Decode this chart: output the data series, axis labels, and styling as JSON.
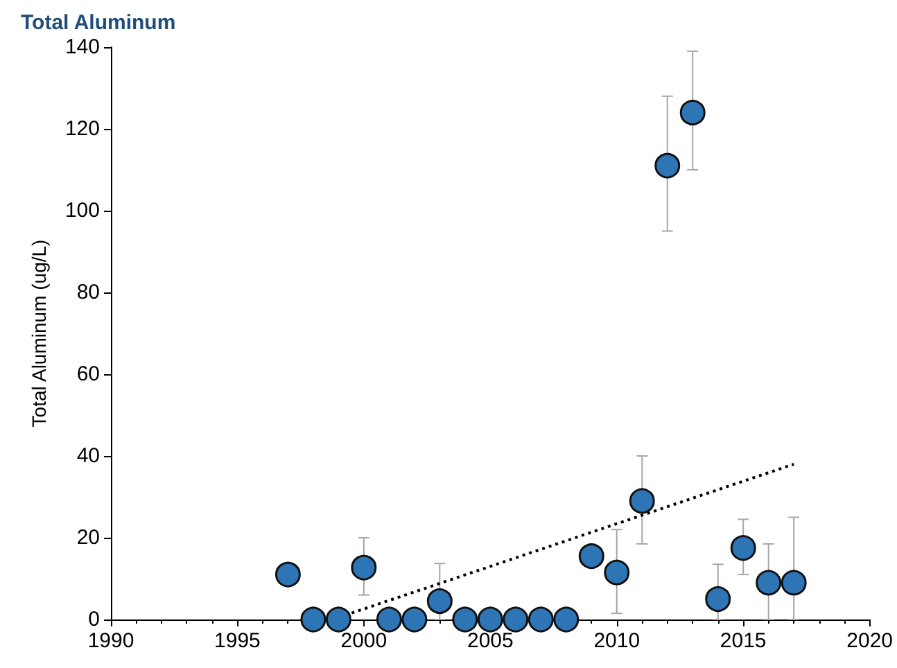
{
  "chart_data": {
    "type": "scatter",
    "title": "Total Aluminum",
    "ylabel": "Total Aluminum (ug/L)",
    "x": [
      1997,
      1998,
      1999,
      2000,
      2001,
      2002,
      2003,
      2004,
      2005,
      2006,
      2007,
      2008,
      2009,
      2010,
      2011,
      2012,
      2013,
      2014,
      2015,
      2016,
      2017
    ],
    "series": [
      {
        "color": "#2e75b6",
        "values": [
          11,
          0,
          0,
          12.7,
          0,
          0,
          4.5,
          0,
          0,
          0,
          0,
          0,
          15.5,
          11.5,
          29,
          111,
          124,
          5,
          17.5,
          9,
          9
        ],
        "errors": [
          null,
          null,
          null,
          [
            6,
            20
          ],
          null,
          null,
          [
            0,
            13.7
          ],
          null,
          null,
          null,
          null,
          null,
          null,
          [
            1.5,
            22
          ],
          [
            18.5,
            40
          ],
          [
            95,
            128
          ],
          [
            110,
            139
          ],
          [
            0,
            13.5
          ],
          [
            11,
            24.5
          ],
          [
            0,
            18.5
          ],
          [
            0,
            25
          ]
        ]
      },
      {
        "type": "line",
        "color": "#000000",
        "line_style": "dotted",
        "marker": "none",
        "x": [
          1999,
          2017
        ],
        "values": [
          0.5,
          38
        ]
      }
    ],
    "marker": "circle",
    "xlim": [
      1990,
      2020
    ],
    "xticks": [
      1990,
      1995,
      2000,
      2005,
      2010,
      2015,
      2020
    ],
    "ylim": [
      0,
      140
    ],
    "yticks": [
      0,
      20,
      40,
      60,
      80,
      100,
      120,
      140
    ],
    "grid": false
  }
}
